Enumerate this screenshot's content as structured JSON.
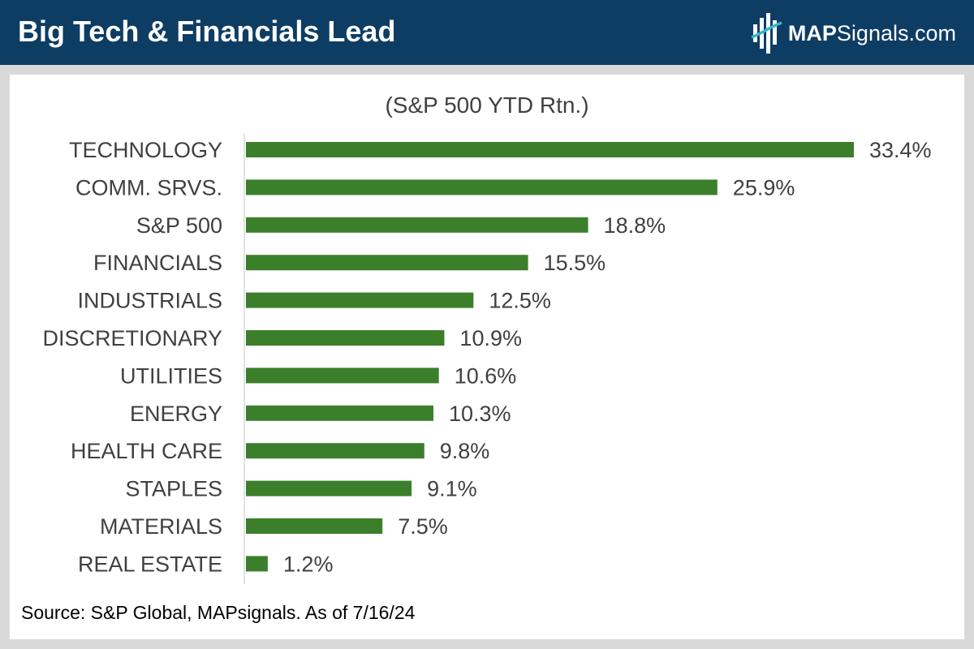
{
  "header": {
    "title": "Big Tech & Financials Lead",
    "brand_bold": "MAP",
    "brand_rest": "Signals.com"
  },
  "colors": {
    "header_bg": "#0e3d64",
    "bar": "#3b7f2a",
    "accent_teal": "#3ab5c6"
  },
  "chart_data": {
    "type": "bar",
    "orientation": "horizontal",
    "title": "(S&P 500 YTD Rtn.)",
    "categories": [
      "TECHNOLOGY",
      "COMM. SRVS.",
      "S&P 500",
      "FINANCIALS",
      "INDUSTRIALS",
      "DISCRETIONARY",
      "UTILITIES",
      "ENERGY",
      "HEALTH CARE",
      "STAPLES",
      "MATERIALS",
      "REAL ESTATE"
    ],
    "values": [
      33.4,
      25.9,
      18.8,
      15.5,
      12.5,
      10.9,
      10.6,
      10.3,
      9.8,
      9.1,
      7.5,
      1.2
    ],
    "value_labels": [
      "33.4%",
      "25.9%",
      "18.8%",
      "15.5%",
      "12.5%",
      "10.9%",
      "10.6%",
      "10.3%",
      "9.8%",
      "9.1%",
      "7.5%",
      "1.2%"
    ],
    "xlim": [
      0,
      33.4
    ],
    "xlabel": "",
    "ylabel": "",
    "grid": false
  },
  "footer": {
    "source": "Source: S&P Global, MAPsignals. As of 7/16/24"
  }
}
